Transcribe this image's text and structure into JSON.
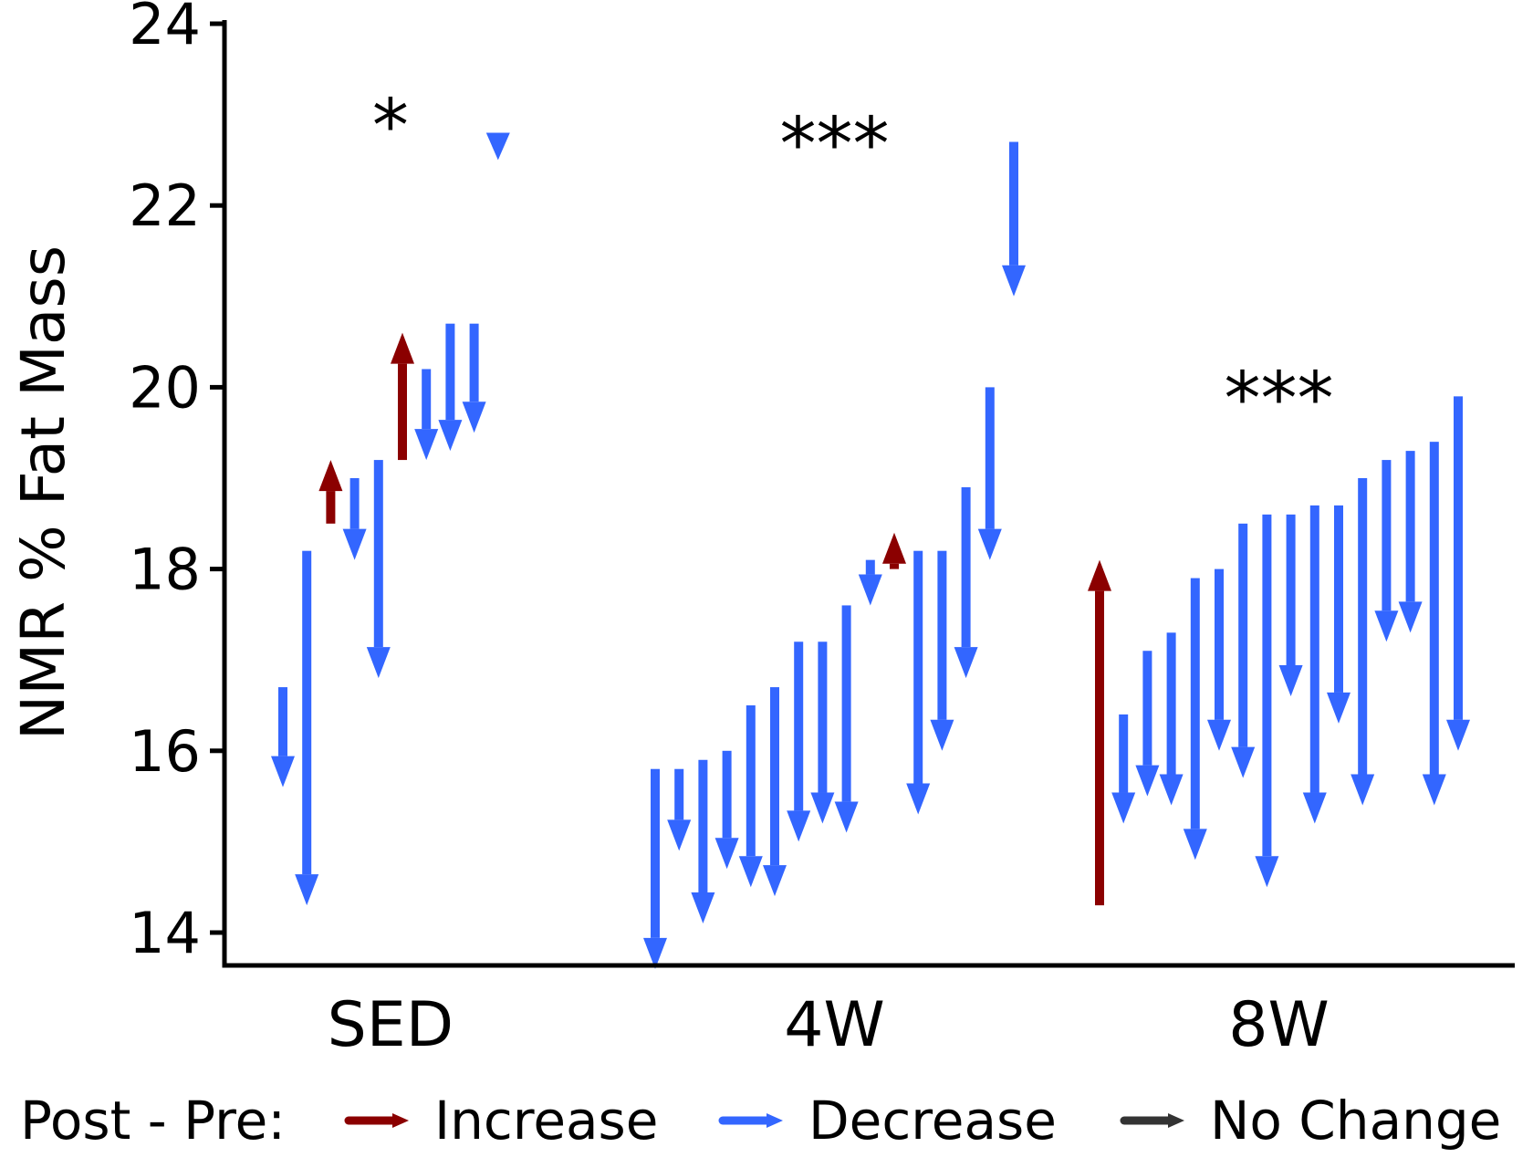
{
  "chart_data": {
    "type": "arrow",
    "ylabel": "NMR % Fat Mass",
    "xlabel": "",
    "ylim": [
      13.6,
      24.1
    ],
    "yticks": [
      14,
      16,
      18,
      20,
      22,
      24
    ],
    "ytick_labels": [
      "14",
      "16",
      "18",
      "20",
      "22",
      "24"
    ],
    "categories": [
      "SED",
      "4W",
      "8W"
    ],
    "significance": [
      "*",
      "***",
      "***"
    ],
    "significance_y": [
      23.2,
      23.0,
      20.2
    ],
    "colors": {
      "increase": "#8b0000",
      "decrease": "#3366ff",
      "no_change": "#333333"
    },
    "legend": {
      "title": "Post - Pre:",
      "position": "bottom",
      "entries": [
        {
          "key": "increase",
          "label": "Increase"
        },
        {
          "key": "decrease",
          "label": "Decrease"
        },
        {
          "key": "no_change",
          "label": "No Change"
        }
      ]
    },
    "groups": [
      {
        "name": "SED",
        "arrows": [
          {
            "pre": 16.7,
            "post": 15.6
          },
          {
            "pre": 18.2,
            "post": 14.3
          },
          {
            "pre": 18.5,
            "post": 19.2
          },
          {
            "pre": 19.0,
            "post": 18.1
          },
          {
            "pre": 19.2,
            "post": 16.8
          },
          {
            "pre": 19.2,
            "post": 20.6
          },
          {
            "pre": 20.2,
            "post": 19.2
          },
          {
            "pre": 20.7,
            "post": 19.3
          },
          {
            "pre": 20.7,
            "post": 19.5
          },
          {
            "pre": 22.8,
            "post": 22.5
          }
        ]
      },
      {
        "name": "4W",
        "arrows": [
          {
            "pre": 15.8,
            "post": 13.6
          },
          {
            "pre": 15.8,
            "post": 14.9
          },
          {
            "pre": 15.9,
            "post": 14.1
          },
          {
            "pre": 16.0,
            "post": 14.7
          },
          {
            "pre": 16.5,
            "post": 14.5
          },
          {
            "pre": 16.7,
            "post": 14.4
          },
          {
            "pre": 17.2,
            "post": 15.0
          },
          {
            "pre": 17.2,
            "post": 15.2
          },
          {
            "pre": 17.6,
            "post": 15.1
          },
          {
            "pre": 18.1,
            "post": 17.6
          },
          {
            "pre": 18.0,
            "post": 18.4
          },
          {
            "pre": 18.2,
            "post": 15.3
          },
          {
            "pre": 18.2,
            "post": 16.0
          },
          {
            "pre": 18.9,
            "post": 16.8
          },
          {
            "pre": 20.0,
            "post": 18.1
          },
          {
            "pre": 22.7,
            "post": 21.0
          }
        ]
      },
      {
        "name": "8W",
        "arrows": [
          {
            "pre": 14.3,
            "post": 18.1
          },
          {
            "pre": 16.4,
            "post": 15.2
          },
          {
            "pre": 17.1,
            "post": 15.5
          },
          {
            "pre": 17.3,
            "post": 15.4
          },
          {
            "pre": 17.9,
            "post": 14.8
          },
          {
            "pre": 18.0,
            "post": 16.0
          },
          {
            "pre": 18.5,
            "post": 15.7
          },
          {
            "pre": 18.6,
            "post": 14.5
          },
          {
            "pre": 18.6,
            "post": 16.6
          },
          {
            "pre": 18.7,
            "post": 15.2
          },
          {
            "pre": 18.7,
            "post": 16.3
          },
          {
            "pre": 19.0,
            "post": 15.4
          },
          {
            "pre": 19.2,
            "post": 17.2
          },
          {
            "pre": 19.3,
            "post": 17.3
          },
          {
            "pre": 19.4,
            "post": 15.4
          },
          {
            "pre": 19.9,
            "post": 16.0
          }
        ]
      }
    ]
  }
}
